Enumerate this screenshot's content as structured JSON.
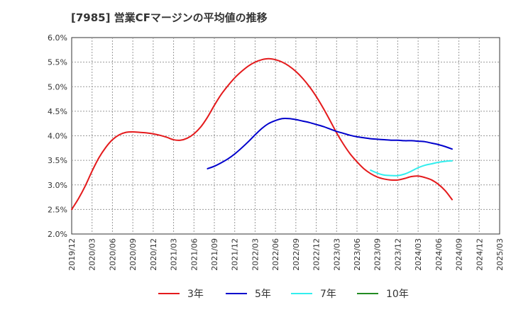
{
  "title": "[7985]  営業CFマージンの平均値の推移",
  "chart_data": {
    "type": "line",
    "title": "[7985]  営業CFマージンの平均値の推移",
    "xlabel": "",
    "ylabel": "",
    "x_ticks": [
      "2019/12",
      "2020/03",
      "2020/06",
      "2020/09",
      "2020/12",
      "2021/03",
      "2021/06",
      "2021/09",
      "2021/12",
      "2022/03",
      "2022/06",
      "2022/09",
      "2022/12",
      "2023/03",
      "2023/06",
      "2023/09",
      "2023/12",
      "2024/03",
      "2024/06",
      "2024/09",
      "2024/12",
      "2025/03"
    ],
    "y_ticks": [
      "2.0%",
      "2.5%",
      "3.0%",
      "3.5%",
      "4.0%",
      "4.5%",
      "5.0%",
      "5.5%",
      "6.0%"
    ],
    "ylim": [
      2.0,
      6.0
    ],
    "grid": true,
    "legend_position": "bottom",
    "series": [
      {
        "name": "3年",
        "color": "#e41a1c",
        "points": [
          [
            "2019/12",
            2.5
          ],
          [
            "2020/01",
            2.72
          ],
          [
            "2020/02",
            2.98
          ],
          [
            "2020/03",
            3.28
          ],
          [
            "2020/04",
            3.55
          ],
          [
            "2020/05",
            3.76
          ],
          [
            "2020/06",
            3.92
          ],
          [
            "2020/07",
            4.02
          ],
          [
            "2020/08",
            4.07
          ],
          [
            "2020/09",
            4.08
          ],
          [
            "2020/10",
            4.07
          ],
          [
            "2020/11",
            4.06
          ],
          [
            "2020/12",
            4.04
          ],
          [
            "2021/01",
            4.01
          ],
          [
            "2021/02",
            3.97
          ],
          [
            "2021/03",
            3.92
          ],
          [
            "2021/04",
            3.91
          ],
          [
            "2021/05",
            3.95
          ],
          [
            "2021/06",
            4.04
          ],
          [
            "2021/07",
            4.18
          ],
          [
            "2021/08",
            4.38
          ],
          [
            "2021/09",
            4.62
          ],
          [
            "2021/10",
            4.84
          ],
          [
            "2021/11",
            5.02
          ],
          [
            "2021/12",
            5.18
          ],
          [
            "2022/01",
            5.31
          ],
          [
            "2022/02",
            5.42
          ],
          [
            "2022/03",
            5.5
          ],
          [
            "2022/04",
            5.55
          ],
          [
            "2022/05",
            5.57
          ],
          [
            "2022/06",
            5.55
          ],
          [
            "2022/07",
            5.5
          ],
          [
            "2022/08",
            5.42
          ],
          [
            "2022/09",
            5.31
          ],
          [
            "2022/10",
            5.17
          ],
          [
            "2022/11",
            5.0
          ],
          [
            "2022/12",
            4.8
          ],
          [
            "2023/01",
            4.57
          ],
          [
            "2023/02",
            4.32
          ],
          [
            "2023/03",
            4.06
          ],
          [
            "2023/04",
            3.83
          ],
          [
            "2023/05",
            3.63
          ],
          [
            "2023/06",
            3.47
          ],
          [
            "2023/07",
            3.33
          ],
          [
            "2023/08",
            3.23
          ],
          [
            "2023/09",
            3.16
          ],
          [
            "2023/10",
            3.12
          ],
          [
            "2023/11",
            3.1
          ],
          [
            "2023/12",
            3.1
          ],
          [
            "2024/01",
            3.13
          ],
          [
            "2024/02",
            3.17
          ],
          [
            "2024/03",
            3.18
          ],
          [
            "2024/04",
            3.15
          ],
          [
            "2024/05",
            3.1
          ],
          [
            "2024/06",
            3.01
          ],
          [
            "2024/07",
            2.88
          ],
          [
            "2024/08",
            2.7
          ]
        ]
      },
      {
        "name": "5年",
        "color": "#0000cc",
        "points": [
          [
            "2021/08",
            3.33
          ],
          [
            "2021/09",
            3.38
          ],
          [
            "2021/10",
            3.45
          ],
          [
            "2021/11",
            3.53
          ],
          [
            "2021/12",
            3.63
          ],
          [
            "2022/01",
            3.75
          ],
          [
            "2022/02",
            3.88
          ],
          [
            "2022/03",
            4.02
          ],
          [
            "2022/04",
            4.15
          ],
          [
            "2022/05",
            4.25
          ],
          [
            "2022/06",
            4.31
          ],
          [
            "2022/07",
            4.35
          ],
          [
            "2022/08",
            4.35
          ],
          [
            "2022/09",
            4.33
          ],
          [
            "2022/10",
            4.3
          ],
          [
            "2022/11",
            4.27
          ],
          [
            "2022/12",
            4.23
          ],
          [
            "2023/01",
            4.19
          ],
          [
            "2023/02",
            4.14
          ],
          [
            "2023/03",
            4.09
          ],
          [
            "2023/04",
            4.05
          ],
          [
            "2023/05",
            4.01
          ],
          [
            "2023/06",
            3.98
          ],
          [
            "2023/07",
            3.96
          ],
          [
            "2023/08",
            3.94
          ],
          [
            "2023/09",
            3.93
          ],
          [
            "2023/10",
            3.92
          ],
          [
            "2023/11",
            3.91
          ],
          [
            "2023/12",
            3.91
          ],
          [
            "2024/01",
            3.9
          ],
          [
            "2024/02",
            3.9
          ],
          [
            "2024/03",
            3.89
          ],
          [
            "2024/04",
            3.88
          ],
          [
            "2024/05",
            3.85
          ],
          [
            "2024/06",
            3.82
          ],
          [
            "2024/07",
            3.78
          ],
          [
            "2024/08",
            3.73
          ]
        ]
      },
      {
        "name": "7年",
        "color": "#33eeee",
        "points": [
          [
            "2023/08",
            3.3
          ],
          [
            "2023/09",
            3.24
          ],
          [
            "2023/10",
            3.2
          ],
          [
            "2023/11",
            3.19
          ],
          [
            "2023/12",
            3.19
          ],
          [
            "2024/01",
            3.22
          ],
          [
            "2024/02",
            3.28
          ],
          [
            "2024/03",
            3.35
          ],
          [
            "2024/04",
            3.4
          ],
          [
            "2024/05",
            3.43
          ],
          [
            "2024/06",
            3.46
          ],
          [
            "2024/07",
            3.48
          ],
          [
            "2024/08",
            3.49
          ]
        ]
      },
      {
        "name": "10年",
        "color": "#228b22",
        "points": []
      }
    ]
  }
}
